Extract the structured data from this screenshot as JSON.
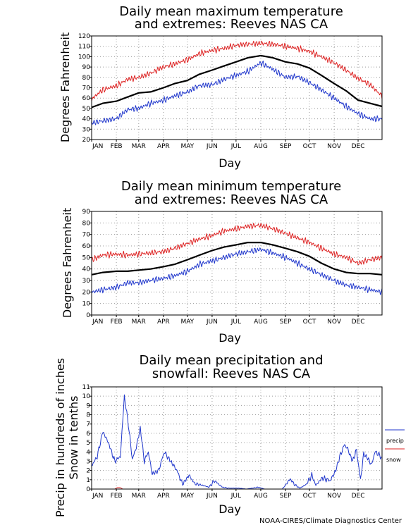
{
  "credit": "NOAA-CIRES/Climate Diagnostics Center",
  "colors": {
    "mean": "#000000",
    "max": "#dd2222",
    "min": "#1f36cc",
    "precip": "#1f36cc",
    "snow": "#dd2222",
    "grid": "#9a9a9a"
  },
  "chart_data": [
    {
      "type": "line",
      "title": [
        "Daily mean maximum temperature",
        "and extremes: Reeves NAS CA"
      ],
      "xlabel": "Day",
      "ylabel": "Degrees Fahrenheit",
      "x_ticks": [
        "JAN",
        "FEB",
        "MAR",
        "APR",
        "MAY",
        "JUN",
        "JUL",
        "AUG",
        "SEP",
        "OCT",
        "NOV",
        "DEC"
      ],
      "x_month_start_days": [
        1,
        32,
        60,
        91,
        121,
        152,
        182,
        213,
        244,
        274,
        305,
        335
      ],
      "xlim": [
        1,
        365
      ],
      "ylim": [
        20,
        120
      ],
      "y_ticks": [
        20,
        30,
        40,
        50,
        60,
        70,
        80,
        90,
        100,
        110,
        120
      ],
      "grid": true,
      "series": [
        {
          "role": "mean",
          "color": "#000000",
          "x": [
            1,
            15,
            32,
            46,
            60,
            75,
            91,
            105,
            121,
            136,
            152,
            167,
            182,
            197,
            213,
            228,
            244,
            259,
            274,
            289,
            305,
            320,
            335,
            350,
            365
          ],
          "values": [
            51,
            55,
            57,
            61,
            65,
            66,
            70,
            74,
            77,
            83,
            87,
            91,
            95,
            99,
            101,
            99,
            95,
            93,
            89,
            82,
            74,
            67,
            58,
            55,
            52
          ]
        },
        {
          "role": "max",
          "color": "#dd2222",
          "x": [
            1,
            15,
            32,
            46,
            60,
            75,
            91,
            105,
            121,
            136,
            152,
            167,
            182,
            197,
            213,
            228,
            244,
            259,
            274,
            289,
            305,
            320,
            335,
            350,
            365
          ],
          "values": [
            59,
            68,
            72,
            78,
            80,
            84,
            90,
            93,
            97,
            103,
            106,
            108,
            111,
            112,
            113,
            112,
            110,
            108,
            105,
            100,
            94,
            87,
            79,
            73,
            62
          ]
        },
        {
          "role": "min",
          "color": "#1f36cc",
          "x": [
            1,
            15,
            32,
            46,
            60,
            75,
            91,
            105,
            121,
            136,
            152,
            167,
            182,
            197,
            213,
            228,
            244,
            259,
            274,
            289,
            305,
            320,
            335,
            350,
            365
          ],
          "values": [
            36,
            38,
            40,
            49,
            50,
            55,
            58,
            62,
            66,
            72,
            73,
            78,
            82,
            86,
            94,
            88,
            80,
            81,
            75,
            68,
            60,
            52,
            45,
            40,
            40
          ]
        }
      ]
    },
    {
      "type": "line",
      "title": [
        "Daily mean minimum temperature",
        "and extremes: Reeves NAS CA"
      ],
      "xlabel": "Day",
      "ylabel": "Degrees Fahrenheit",
      "x_ticks": [
        "JAN",
        "FEB",
        "MAR",
        "APR",
        "MAY",
        "JUN",
        "JUL",
        "AUG",
        "SEP",
        "OCT",
        "NOV",
        "DEC"
      ],
      "x_month_start_days": [
        1,
        32,
        60,
        91,
        121,
        152,
        182,
        213,
        244,
        274,
        305,
        335
      ],
      "xlim": [
        1,
        365
      ],
      "ylim": [
        0,
        90
      ],
      "y_ticks": [
        0,
        10,
        20,
        30,
        40,
        50,
        60,
        70,
        80,
        90
      ],
      "grid": true,
      "series": [
        {
          "role": "mean",
          "color": "#000000",
          "x": [
            1,
            15,
            32,
            46,
            60,
            75,
            91,
            105,
            121,
            136,
            152,
            167,
            182,
            197,
            213,
            228,
            244,
            259,
            274,
            289,
            305,
            320,
            335,
            350,
            365
          ],
          "values": [
            35,
            37,
            38,
            38,
            39,
            40,
            42,
            44,
            48,
            52,
            56,
            59,
            61,
            63,
            63,
            61,
            58,
            55,
            51,
            45,
            40,
            37,
            36,
            36,
            35
          ]
        },
        {
          "role": "max",
          "color": "#dd2222",
          "x": [
            1,
            15,
            32,
            46,
            60,
            75,
            91,
            105,
            121,
            136,
            152,
            167,
            182,
            197,
            213,
            228,
            244,
            259,
            274,
            289,
            305,
            320,
            335,
            350,
            365
          ],
          "values": [
            48,
            52,
            53,
            52,
            53,
            54,
            55,
            58,
            62,
            66,
            69,
            73,
            75,
            77,
            78,
            75,
            71,
            67,
            63,
            58,
            53,
            50,
            45,
            48,
            50
          ]
        },
        {
          "role": "min",
          "color": "#1f36cc",
          "x": [
            1,
            15,
            32,
            46,
            60,
            75,
            91,
            105,
            121,
            136,
            152,
            167,
            182,
            197,
            213,
            228,
            244,
            259,
            274,
            289,
            305,
            320,
            335,
            350,
            365
          ],
          "values": [
            20,
            22,
            24,
            28,
            28,
            30,
            32,
            34,
            38,
            44,
            47,
            50,
            53,
            55,
            57,
            54,
            50,
            45,
            40,
            35,
            30,
            26,
            24,
            22,
            20
          ]
        }
      ]
    },
    {
      "type": "line",
      "title": [
        "Daily mean precipitation and",
        "snowfall: Reeves NAS CA"
      ],
      "xlabel": "Day",
      "ylabel": [
        "Precip in hundreds of inches",
        "Snow in tenths"
      ],
      "x_ticks": [
        "JAN",
        "FEB",
        "MAR",
        "APR",
        "MAY",
        "JUN",
        "JUL",
        "AUG",
        "SEP",
        "OCT",
        "NOV",
        "DEC"
      ],
      "x_month_start_days": [
        1,
        32,
        60,
        91,
        121,
        152,
        182,
        213,
        244,
        274,
        305,
        335
      ],
      "xlim": [
        1,
        365
      ],
      "ylim": [
        0,
        11
      ],
      "y_ticks": [
        0,
        1,
        2,
        3,
        4,
        5,
        6,
        7,
        8,
        9,
        10,
        11
      ],
      "grid": true,
      "legend": {
        "position": "right",
        "entries": [
          "precip",
          "snow"
        ]
      },
      "series": [
        {
          "name": "precip",
          "color": "#1f36cc",
          "x": [
            1,
            8,
            15,
            22,
            30,
            37,
            42,
            47,
            52,
            57,
            62,
            67,
            72,
            77,
            85,
            92,
            100,
            108,
            115,
            123,
            130,
            140,
            148,
            155,
            165,
            172,
            185,
            195,
            210,
            218,
            240,
            250,
            255,
            262,
            270,
            277,
            282,
            290,
            300,
            307,
            312,
            318,
            322,
            328,
            333,
            338,
            342,
            348,
            352,
            356,
            360,
            365
          ],
          "values": [
            2.5,
            3.5,
            6.2,
            5.0,
            3.0,
            3.5,
            10.0,
            7.0,
            3.2,
            4.5,
            6.6,
            3.0,
            4.0,
            1.6,
            2.0,
            4.0,
            3.0,
            2.0,
            0.5,
            1.5,
            0.6,
            0.4,
            0.2,
            0.9,
            0.2,
            0.1,
            0.1,
            0.0,
            0.2,
            0.0,
            0.0,
            1.1,
            0.5,
            0.1,
            0.5,
            1.5,
            0.4,
            1.2,
            0.9,
            2.0,
            3.5,
            4.8,
            4.3,
            3.0,
            4.2,
            1.0,
            3.8,
            3.2,
            2.6,
            4.0,
            3.8,
            3.3
          ]
        },
        {
          "name": "snow",
          "color": "#dd2222",
          "x": [
            1,
            30,
            33,
            37,
            40,
            365
          ],
          "values": [
            0,
            0,
            0.15,
            0.15,
            0,
            0
          ]
        }
      ]
    }
  ]
}
